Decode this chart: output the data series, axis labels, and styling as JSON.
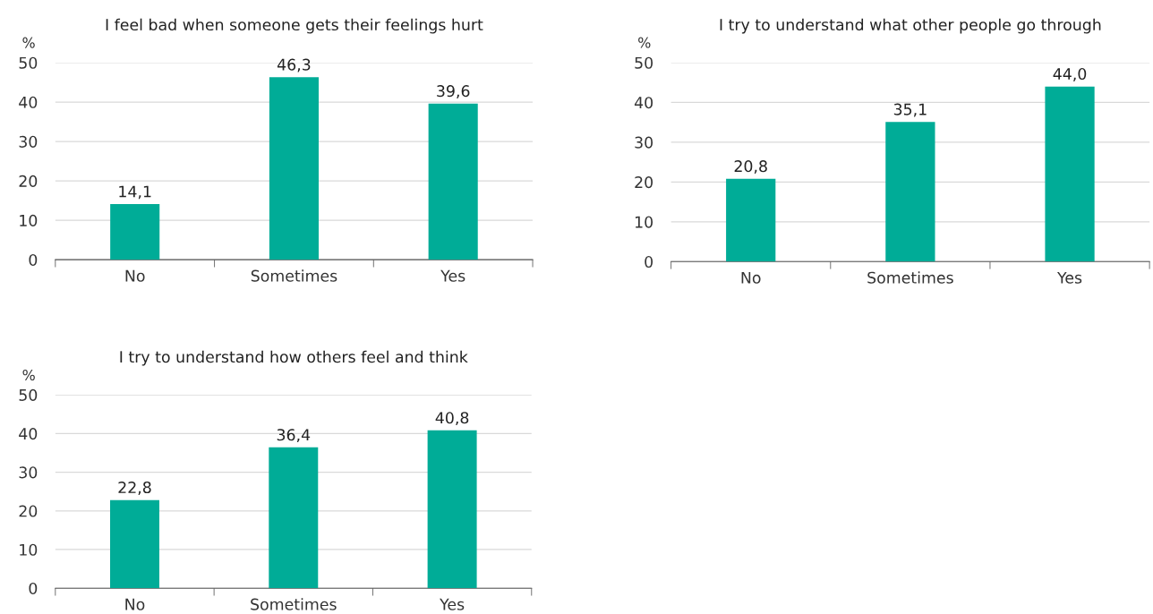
{
  "chart_data": [
    {
      "type": "bar",
      "title": "I feel bad when someone gets their feelings hurt",
      "ylabel": "%",
      "categories": [
        "No",
        "Sometimes",
        "Yes"
      ],
      "values": [
        14.1,
        46.3,
        39.6
      ],
      "value_labels": [
        "14,1",
        "46,3",
        "39,6"
      ],
      "color": "#00ac97",
      "ylim": [
        0,
        50
      ],
      "yticks": [
        0,
        10,
        20,
        30,
        40,
        50
      ],
      "grid": "y",
      "legend": false
    },
    {
      "type": "bar",
      "title": "I try to understand what other people go through",
      "ylabel": "%",
      "categories": [
        "No",
        "Sometimes",
        "Yes"
      ],
      "values": [
        20.8,
        35.1,
        44.0
      ],
      "value_labels": [
        "20,8",
        "35,1",
        "44,0"
      ],
      "color": "#00ac97",
      "ylim": [
        0,
        50
      ],
      "yticks": [
        0,
        10,
        20,
        30,
        40,
        50
      ],
      "grid": "y",
      "legend": false
    },
    {
      "type": "bar",
      "title": "I try to understand how others feel and think",
      "ylabel": "%",
      "categories": [
        "No",
        "Sometimes",
        "Yes"
      ],
      "values": [
        22.8,
        36.4,
        40.8
      ],
      "value_labels": [
        "22,8",
        "36,4",
        "40,8"
      ],
      "color": "#00ac97",
      "ylim": [
        0,
        50
      ],
      "yticks": [
        0,
        10,
        20,
        30,
        40,
        50
      ],
      "grid": "y",
      "legend": false
    }
  ]
}
